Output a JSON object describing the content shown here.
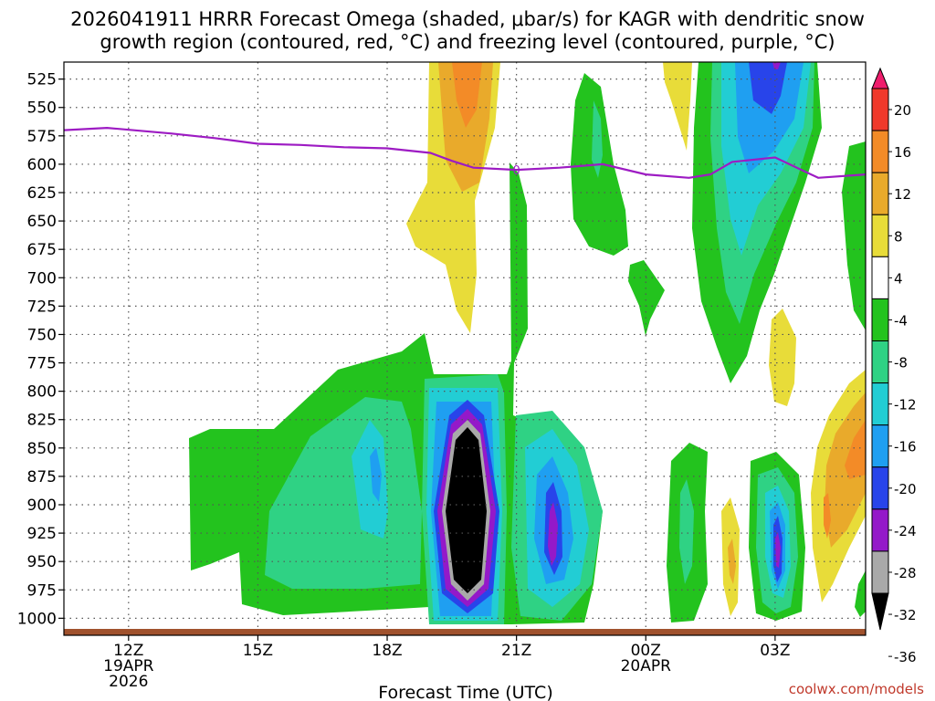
{
  "chart_data": {
    "type": "heatmap",
    "title": {
      "line1": "2026041911 HRRR Forecast Omega (shaded, μbar/s) for KAGR with dendritic snow",
      "line2": "growth region (contoured, red, °C) and freezing level (contoured, purple, °C)"
    },
    "xlabel": "Forecast Time (UTC)",
    "credit": "coolwx.com/models",
    "x_range_hours": [
      10.5,
      29.1
    ],
    "y_range_hpa": [
      510,
      1015
    ],
    "y_ticks": [
      525,
      550,
      575,
      600,
      625,
      650,
      675,
      700,
      725,
      750,
      775,
      800,
      825,
      850,
      875,
      900,
      925,
      950,
      975,
      1000
    ],
    "x_ticks": [
      {
        "hour": 12,
        "lines": [
          "12Z",
          "19APR",
          "2026"
        ]
      },
      {
        "hour": 15,
        "lines": [
          "15Z"
        ]
      },
      {
        "hour": 18,
        "lines": [
          "18Z"
        ]
      },
      {
        "hour": 21,
        "lines": [
          "21Z"
        ]
      },
      {
        "hour": 24,
        "lines": [
          "00Z",
          "20APR"
        ]
      },
      {
        "hour": 27,
        "lines": [
          "03Z"
        ]
      }
    ],
    "freezing_level": {
      "label": "0",
      "label_hour": 21.0,
      "points": [
        [
          10.5,
          570
        ],
        [
          11.5,
          568
        ],
        [
          13.0,
          573
        ],
        [
          14.0,
          577
        ],
        [
          15.0,
          582
        ],
        [
          16.0,
          583
        ],
        [
          17.0,
          585
        ],
        [
          18.0,
          586
        ],
        [
          19.0,
          590
        ],
        [
          19.5,
          597
        ],
        [
          20.0,
          603
        ],
        [
          21.0,
          605
        ],
        [
          22.0,
          603
        ],
        [
          23.0,
          600
        ],
        [
          24.0,
          609
        ],
        [
          25.0,
          612
        ],
        [
          25.5,
          609
        ],
        [
          26.0,
          598
        ],
        [
          27.0,
          594
        ],
        [
          28.0,
          612
        ],
        [
          29.1,
          609
        ]
      ]
    },
    "colorbar": {
      "ticks": [
        "20",
        "16",
        "12",
        "8",
        "4",
        "-4",
        "-8",
        "-12",
        "-16",
        "-20",
        "-24",
        "-28",
        "-32",
        "-36"
      ],
      "bins": [
        {
          "color": "#ef1d6c"
        },
        {
          "color": "#f0392b"
        },
        {
          "color": "#f38b27"
        },
        {
          "color": "#e9aa2b"
        },
        {
          "color": "#e8dc39"
        },
        {
          "color": "#ffffff"
        },
        {
          "color": "#23c31e"
        },
        {
          "color": "#2fd284"
        },
        {
          "color": "#22cdd4"
        },
        {
          "color": "#1f9ff1"
        },
        {
          "color": "#2844ea"
        },
        {
          "color": "#9419c9"
        },
        {
          "color": "#a9a9a9"
        },
        {
          "color": "#000000"
        }
      ]
    },
    "colors": {
      "ground": "#a0522d",
      "freezing_line": "#9d1bc3",
      "grid": "#555555"
    }
  }
}
